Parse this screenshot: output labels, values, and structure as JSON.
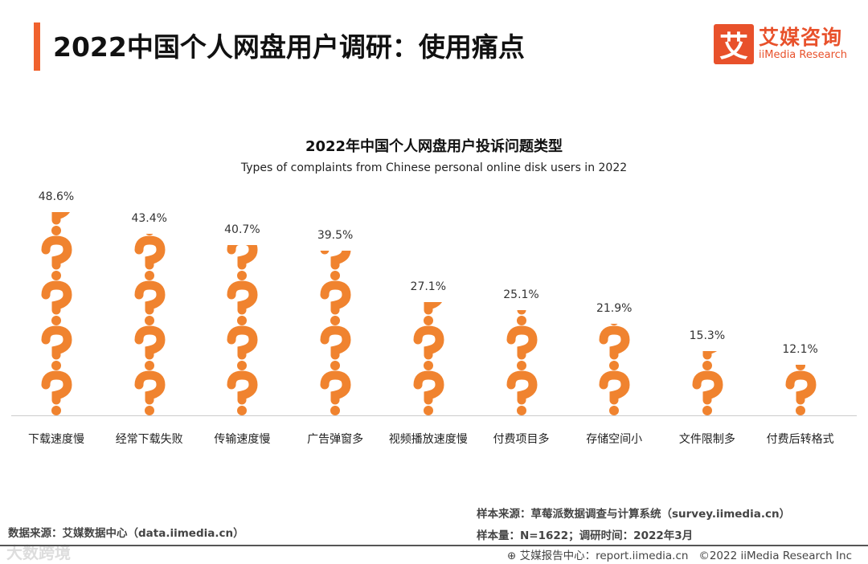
{
  "header": {
    "title": "2022中国个人网盘用户调研：使用痛点",
    "logo_mark": "艾",
    "logo_cn": "艾媒咨询",
    "logo_en": "iiMedia Research"
  },
  "colors": {
    "accent": "#F0622E",
    "icon": "#F0832F"
  },
  "chart_data": {
    "type": "bar",
    "title": "2022年中国个人网盘用户投诉问题类型",
    "subtitle": "Types of complaints from Chinese personal online disk users in 2022",
    "categories": [
      "下载速度慢",
      "经常下载失败",
      "传输速度慢",
      "广告弹窗多",
      "视频播放速度慢",
      "付费项目多",
      "存储空间小",
      "文件限制多",
      "付费后转格式"
    ],
    "values": [
      48.6,
      43.4,
      40.7,
      39.5,
      27.1,
      25.1,
      21.9,
      15.3,
      12.1
    ],
    "labels": [
      "48.6%",
      "43.4%",
      "40.7%",
      "39.5%",
      "27.1%",
      "25.1%",
      "21.9%",
      "15.3%",
      "12.1%"
    ],
    "unit": "%",
    "ylim": [
      0,
      50
    ],
    "icon": "question-mark"
  },
  "footer": {
    "source": "数据来源：艾媒数据中心（data.iimedia.cn）",
    "sample_source": "样本来源：草莓派数据调查与计算系统（survey.iimedia.cn）",
    "sample": "样本量：N=1622；调研时间：2022年3月",
    "report": "艾媒报告中心：report.iimedia.cn",
    "copyright": "©2022 iiMedia Research Inc",
    "watermark": "大数跨境"
  }
}
